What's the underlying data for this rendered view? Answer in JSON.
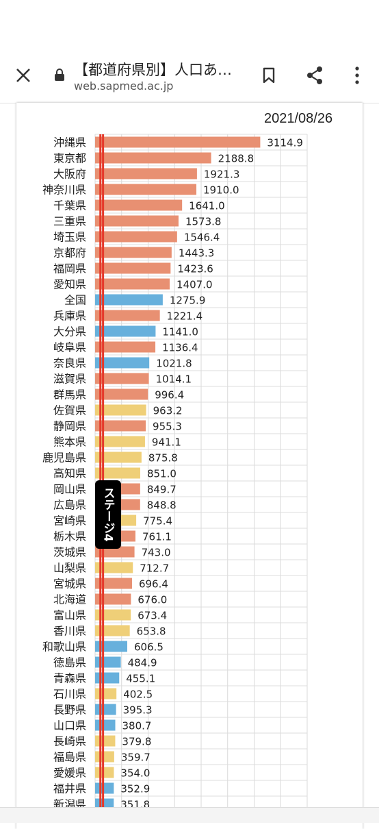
{
  "browser": {
    "title": "【都道府県別】人口あ…",
    "url": "web.sapmed.ac.jp",
    "close_icon": "close-icon",
    "lock_icon": "lock-icon",
    "bookmark_icon": "bookmark-icon",
    "share_icon": "share-icon",
    "menu_icon": "more-vert-icon"
  },
  "chart_header": {
    "date": "2021/08/26"
  },
  "stage_label": "ステージ4",
  "colors": {
    "orange": "#E89072",
    "blue": "#67B0DC",
    "yellow": "#EFCF78",
    "threshold": "#E53A2B"
  },
  "chart_data": {
    "type": "bar",
    "orientation": "horizontal",
    "categories": [
      "沖縄県",
      "東京都",
      "大阪府",
      "神奈川県",
      "千葉県",
      "三重県",
      "埼玉県",
      "京都府",
      "福岡県",
      "愛知県",
      "全国",
      "兵庫県",
      "大分県",
      "岐阜県",
      "奈良県",
      "滋賀県",
      "群馬県",
      "佐賀県",
      "静岡県",
      "熊本県",
      "鹿児島県",
      "高知県",
      "岡山県",
      "広島県",
      "宮崎県",
      "栃木県",
      "茨城県",
      "山梨県",
      "宮城県",
      "北海道",
      "富山県",
      "香川県",
      "和歌山県",
      "徳島県",
      "青森県",
      "石川県",
      "長野県",
      "山口県",
      "長崎県",
      "福島県",
      "愛媛県",
      "福井県",
      "新潟県"
    ],
    "values": [
      3114.9,
      2188.8,
      1921.3,
      1910.0,
      1641.0,
      1573.8,
      1546.4,
      1443.3,
      1423.6,
      1407.0,
      1275.9,
      1221.4,
      1141.0,
      1136.4,
      1021.8,
      1014.1,
      996.4,
      963.2,
      955.3,
      941.1,
      875.8,
      851.0,
      849.7,
      848.8,
      775.4,
      761.1,
      743.0,
      712.7,
      696.4,
      676.0,
      673.4,
      653.8,
      606.5,
      484.9,
      455.1,
      402.5,
      395.3,
      380.7,
      379.8,
      359.7,
      354.0,
      352.9,
      351.8
    ],
    "labels": [
      "3114.9",
      "2188.8",
      "1921.3",
      "1910.0",
      "1641.0",
      "1573.8",
      "1546.4",
      "1443.3",
      "1423.6",
      "1407.0",
      "1275.9",
      "1221.4",
      "1141.0",
      "1136.4",
      "1021.8",
      "1014.1",
      "996.4",
      "963.2",
      "955.3",
      "941.1",
      "875.8",
      "851.0",
      "849.7",
      "848.8",
      "775.4",
      "761.1",
      "743.0",
      "712.7",
      "696.4",
      "676.0",
      "673.4",
      "653.8",
      "606.5",
      "484.9",
      "455.1",
      "402.5",
      "395.3",
      "380.7",
      "379.8",
      "359.7",
      "354.0",
      "352.9",
      "351.8"
    ],
    "bar_colors": [
      "orange",
      "orange",
      "orange",
      "orange",
      "orange",
      "orange",
      "orange",
      "orange",
      "orange",
      "orange",
      "blue",
      "orange",
      "blue",
      "orange",
      "blue",
      "orange",
      "orange",
      "yellow",
      "orange",
      "yellow",
      "yellow",
      "yellow",
      "orange",
      "orange",
      "yellow",
      "orange",
      "orange",
      "yellow",
      "orange",
      "orange",
      "yellow",
      "yellow",
      "blue",
      "blue",
      "blue",
      "yellow",
      "blue",
      "blue",
      "yellow",
      "yellow",
      "yellow",
      "blue",
      "blue"
    ],
    "xlim": [
      0,
      4000
    ],
    "reference_lines": [
      100,
      150
    ],
    "grid": true
  }
}
